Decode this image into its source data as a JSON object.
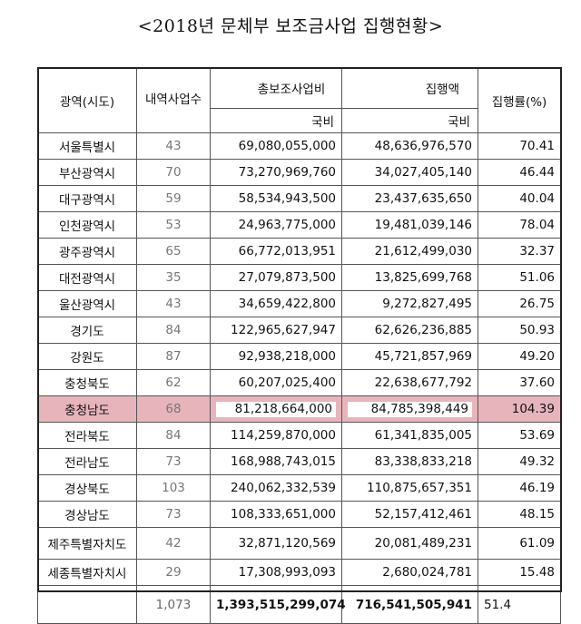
{
  "title": "<2018년 문체부 보조금사업 집행현황>",
  "header": {
    "region": "광역(시도)",
    "count": "내역사업수",
    "total_subsidy": "총보조사업비",
    "executed": "집행액",
    "rate": "집행률(%)",
    "sub_national": "국비",
    "sub_national2": "국비"
  },
  "rows": [
    {
      "region": "서울특별시",
      "count": "43",
      "subsidy": "69,080,055,000",
      "executed": "48,636,976,570",
      "rate": "70.41"
    },
    {
      "region": "부산광역시",
      "count": "70",
      "subsidy": "73,270,969,760",
      "executed": "34,027,405,140",
      "rate": "46.44"
    },
    {
      "region": "대구광역시",
      "count": "59",
      "subsidy": "58,534,943,500",
      "executed": "23,437,635,650",
      "rate": "40.04"
    },
    {
      "region": "인천광역시",
      "count": "53",
      "subsidy": "24,963,775,000",
      "executed": "19,481,039,146",
      "rate": "78.04"
    },
    {
      "region": "광주광역시",
      "count": "65",
      "subsidy": "66,772,013,951",
      "executed": "21,612,499,030",
      "rate": "32.37"
    },
    {
      "region": "대전광역시",
      "count": "35",
      "subsidy": "27,079,873,500",
      "executed": "13,825,699,768",
      "rate": "51.06"
    },
    {
      "region": "울산광역시",
      "count": "43",
      "subsidy": "34,659,422,800",
      "executed": "9,272,827,495",
      "rate": "26.75"
    },
    {
      "region": "경기도",
      "count": "84",
      "subsidy": "122,965,627,947",
      "executed": "62,626,236,885",
      "rate": "50.93"
    },
    {
      "region": "강원도",
      "count": "87",
      "subsidy": "92,938,218,000",
      "executed": "45,721,857,969",
      "rate": "49.20"
    },
    {
      "region": "충청북도",
      "count": "62",
      "subsidy": "60,207,025,400",
      "executed": "22,638,677,792",
      "rate": "37.60"
    },
    {
      "region": "충청남도",
      "count": "68",
      "subsidy": "81,218,664,000",
      "executed": "84,785,398,449",
      "rate": "104.39"
    },
    {
      "region": "전라북도",
      "count": "84",
      "subsidy": "114,259,870,000",
      "executed": "61,341,835,005",
      "rate": "53.69"
    },
    {
      "region": "전라남도",
      "count": "73",
      "subsidy": "168,988,743,015",
      "executed": "83,338,833,218",
      "rate": "49.32"
    },
    {
      "region": "경상북도",
      "count": "103",
      "subsidy": "240,062,332,539",
      "executed": "110,875,657,351",
      "rate": "46.19"
    },
    {
      "region": "경상남도",
      "count": "73",
      "subsidy": "108,333,651,000",
      "executed": "52,157,412,461",
      "rate": "48.15"
    },
    {
      "region": "제주특별자치도",
      "count": "42",
      "subsidy": "32,871,120,569",
      "executed": "20,081,489,231",
      "rate": "61.09"
    },
    {
      "region": "세종특별자치시",
      "count": "29",
      "subsidy": "17,308,993,093",
      "executed": "2,680,024,781",
      "rate": "15.48"
    }
  ],
  "total": {
    "count": "1,073",
    "subsidy": "1,393,515,299,074",
    "executed": "716,541,505,941",
    "rate": "51.4"
  },
  "highlight_color": "#e8b4bc"
}
